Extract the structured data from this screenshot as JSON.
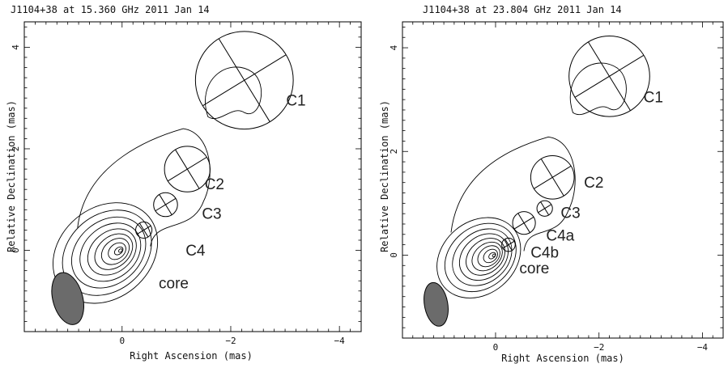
{
  "chart_data": [
    {
      "type": "contour",
      "title": "J1104+38 at 15.360 GHz 2011 Jan 14",
      "xlabel": "Right Ascension  (mas)",
      "ylabel": "Relative Declination  (mas)",
      "xlim": [
        1.8,
        -4.4
      ],
      "ylim": [
        -1.6,
        4.5
      ],
      "x_reversed": true,
      "xticks": [
        0,
        -2,
        -4
      ],
      "yticks": [
        0,
        2,
        4
      ],
      "xtick_labels": [
        "0",
        "−2",
        "−4"
      ],
      "ytick_labels": [
        "0",
        "2",
        "4"
      ],
      "beam": {
        "x": 1.0,
        "y": -0.95,
        "major": 1.05,
        "minor": 0.55,
        "pa_deg": 15,
        "color": "#6b6b6b"
      },
      "components": [
        {
          "name": "C1",
          "x": -2.25,
          "y": 3.35,
          "radius": 0.9,
          "label_x": -3.2,
          "label_y": 2.85
        },
        {
          "name": "C2",
          "x": -1.2,
          "y": 1.6,
          "radius": 0.42,
          "label_x": -1.7,
          "label_y": 1.2
        },
        {
          "name": "C3",
          "x": -0.8,
          "y": 0.9,
          "radius": 0.22,
          "label_x": -1.65,
          "label_y": 0.62
        },
        {
          "name": "C4",
          "x": -0.4,
          "y": 0.4,
          "radius": 0.15,
          "label_x": -1.35,
          "label_y": -0.1
        },
        {
          "name": "core",
          "x": 0.0,
          "y": 0.0,
          "radius": 0.0,
          "label_x": -0.95,
          "label_y": -0.75
        }
      ]
    },
    {
      "type": "contour",
      "title": "J1104+38 at 23.804 GHz 2011 Jan 14",
      "xlabel": "Right Ascension  (mas)",
      "ylabel": "Relative Declination  (mas)",
      "xlim": [
        1.8,
        -4.4
      ],
      "ylim": [
        -1.6,
        4.5
      ],
      "x_reversed": true,
      "xticks": [
        0,
        -2,
        -4
      ],
      "yticks": [
        0,
        2,
        4
      ],
      "xtick_labels": [
        "0",
        "−2",
        "−4"
      ],
      "ytick_labels": [
        "0",
        "2",
        "4"
      ],
      "beam": {
        "x": 1.15,
        "y": -0.95,
        "major": 0.85,
        "minor": 0.45,
        "pa_deg": 10,
        "color": "#6b6b6b"
      },
      "components": [
        {
          "name": "C1",
          "x": -2.2,
          "y": 3.45,
          "radius": 0.78,
          "label_x": -3.05,
          "label_y": 2.95
        },
        {
          "name": "C2",
          "x": -1.1,
          "y": 1.5,
          "radius": 0.42,
          "label_x": -1.9,
          "label_y": 1.3
        },
        {
          "name": "C3",
          "x": -0.95,
          "y": 0.9,
          "radius": 0.15,
          "label_x": -1.45,
          "label_y": 0.72
        },
        {
          "name": "C4a",
          "x": -0.55,
          "y": 0.62,
          "radius": 0.22,
          "label_x": -1.25,
          "label_y": 0.28
        },
        {
          "name": "C4b",
          "x": -0.25,
          "y": 0.2,
          "radius": 0.13,
          "label_x": -0.95,
          "label_y": -0.05
        },
        {
          "name": "core",
          "x": 0.0,
          "y": 0.0,
          "radius": 0.0,
          "label_x": -0.75,
          "label_y": -0.35
        }
      ]
    }
  ]
}
